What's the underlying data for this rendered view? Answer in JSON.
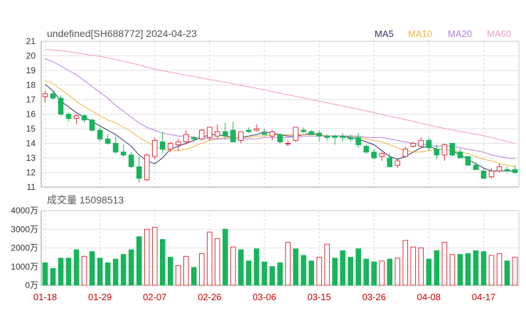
{
  "header": {
    "title": "undefined[SH688772] 2024-04-23"
  },
  "legend": [
    {
      "label": "MA5",
      "color": "#333366"
    },
    {
      "label": "MA10",
      "color": "#f0b43c"
    },
    {
      "label": "MA20",
      "color": "#b87ddc"
    },
    {
      "label": "MA60",
      "color": "#f09cc8"
    }
  ],
  "colors": {
    "up": "#e0303c",
    "down": "#18b45a"
  },
  "chart_data": [
    {
      "type": "candlestick",
      "name": "price",
      "ylim": [
        11,
        21
      ],
      "yticks": [
        "21",
        "20",
        "19",
        "18",
        "17",
        "16",
        "15",
        "14",
        "13",
        "12",
        "11"
      ],
      "xticks": [
        {
          "index": 0,
          "label": "01-18"
        },
        {
          "index": 7,
          "label": "01-29"
        },
        {
          "index": 14,
          "label": "02-07"
        },
        {
          "index": 21,
          "label": "02-26"
        },
        {
          "index": 28,
          "label": "03-06"
        },
        {
          "index": 35,
          "label": "03-15"
        },
        {
          "index": 42,
          "label": "03-26"
        },
        {
          "index": 49,
          "label": "04-08"
        },
        {
          "index": 56,
          "label": "04-17"
        }
      ],
      "ohlc": [
        [
          17.2,
          17.6,
          16.8,
          17.4
        ],
        [
          17.4,
          17.6,
          17.0,
          17.1
        ],
        [
          17.1,
          17.3,
          15.9,
          16.0
        ],
        [
          16.0,
          16.1,
          15.5,
          15.7
        ],
        [
          15.7,
          16.0,
          15.3,
          15.9
        ],
        [
          15.9,
          16.0,
          15.4,
          15.6
        ],
        [
          15.6,
          15.7,
          14.8,
          14.9
        ],
        [
          14.9,
          15.1,
          14.1,
          14.3
        ],
        [
          14.3,
          14.6,
          13.9,
          14.0
        ],
        [
          14.0,
          14.5,
          13.3,
          13.4
        ],
        [
          13.4,
          13.9,
          13.1,
          13.2
        ],
        [
          13.2,
          13.4,
          12.3,
          12.4
        ],
        [
          12.4,
          13.1,
          11.3,
          11.6
        ],
        [
          11.5,
          13.3,
          11.4,
          13.2
        ],
        [
          13.1,
          14.4,
          12.9,
          14.2
        ],
        [
          14.1,
          14.8,
          13.3,
          13.6
        ],
        [
          13.6,
          14.1,
          13.4,
          14.0
        ],
        [
          13.9,
          14.3,
          13.5,
          14.1
        ],
        [
          14.1,
          14.9,
          13.9,
          14.6
        ],
        [
          14.4,
          14.5,
          14.1,
          14.3
        ],
        [
          14.3,
          15.0,
          14.2,
          14.9
        ],
        [
          14.4,
          15.1,
          14.2,
          15.1
        ],
        [
          14.5,
          15.3,
          14.3,
          14.8
        ],
        [
          14.8,
          15.4,
          14.3,
          14.5
        ],
        [
          14.9,
          15.5,
          14.1,
          14.1
        ],
        [
          14.2,
          14.8,
          14.0,
          14.8
        ],
        [
          14.9,
          15.1,
          14.7,
          14.8
        ],
        [
          14.9,
          15.3,
          14.8,
          15.0
        ],
        [
          14.7,
          15.0,
          14.6,
          14.6
        ],
        [
          14.5,
          14.9,
          14.2,
          14.8
        ],
        [
          14.6,
          14.7,
          14.0,
          14.1
        ],
        [
          14.0,
          14.2,
          13.8,
          14.0
        ],
        [
          14.2,
          15.1,
          14.1,
          15.1
        ],
        [
          14.9,
          15.1,
          14.7,
          14.8
        ],
        [
          14.8,
          14.9,
          14.6,
          14.6
        ],
        [
          14.7,
          14.9,
          14.1,
          14.5
        ],
        [
          14.5,
          14.6,
          14.2,
          14.4
        ],
        [
          14.5,
          14.6,
          13.9,
          14.4
        ],
        [
          14.5,
          14.7,
          14.1,
          14.4
        ],
        [
          14.4,
          14.6,
          14.1,
          14.3
        ],
        [
          14.4,
          14.7,
          13.7,
          13.9
        ],
        [
          13.8,
          13.9,
          13.3,
          13.4
        ],
        [
          13.4,
          13.6,
          12.9,
          13.0
        ],
        [
          13.1,
          13.4,
          12.8,
          13.3
        ],
        [
          13.0,
          13.3,
          12.4,
          12.4
        ],
        [
          12.5,
          13.0,
          12.3,
          12.8
        ],
        [
          13.1,
          13.8,
          13.0,
          13.6
        ],
        [
          13.8,
          14.1,
          13.7,
          14.0
        ],
        [
          13.8,
          14.4,
          13.7,
          14.2
        ],
        [
          14.2,
          14.4,
          13.5,
          13.7
        ],
        [
          13.6,
          13.9,
          12.9,
          13.2
        ],
        [
          13.2,
          14.0,
          12.8,
          13.9
        ],
        [
          14.0,
          14.0,
          13.1,
          13.2
        ],
        [
          13.4,
          13.6,
          13.0,
          13.0
        ],
        [
          13.1,
          13.1,
          12.5,
          12.5
        ],
        [
          12.5,
          12.7,
          12.2,
          12.2
        ],
        [
          12.1,
          12.3,
          11.6,
          11.6
        ],
        [
          11.7,
          12.3,
          11.6,
          12.1
        ],
        [
          12.1,
          12.6,
          12.0,
          12.4
        ],
        [
          12.2,
          12.4,
          12.0,
          12.1
        ],
        [
          12.2,
          12.5,
          11.9,
          12.0
        ]
      ],
      "ma_curves": {
        "MA5": [
          18.05,
          17.6,
          16.9,
          16.5,
          16.1,
          15.8,
          15.5,
          15.2,
          14.9,
          14.6,
          14.2,
          13.8,
          13.2,
          12.8,
          12.6,
          13.0,
          13.6,
          13.8,
          14.0,
          14.2,
          14.4,
          14.6,
          14.6,
          14.5,
          14.4,
          14.4,
          14.5,
          14.6,
          14.8,
          14.7,
          14.6,
          14.5,
          14.5,
          14.6,
          14.7,
          14.6,
          14.5,
          14.5,
          14.5,
          14.4,
          14.3,
          14.1,
          13.9,
          13.5,
          13.1,
          12.9,
          13.1,
          13.4,
          13.7,
          13.8,
          13.6,
          13.6,
          13.5,
          13.2,
          12.9,
          12.6,
          12.3,
          12.1,
          12.1,
          12.1,
          12.1
        ],
        "MA10": [
          18.3,
          18.1,
          17.7,
          17.3,
          16.9,
          16.5,
          16.2,
          15.9,
          15.6,
          15.4,
          15.1,
          14.8,
          14.4,
          14.1,
          13.8,
          13.6,
          13.5,
          13.5,
          13.6,
          13.8,
          14.0,
          14.2,
          14.3,
          14.4,
          14.4,
          14.4,
          14.4,
          14.5,
          14.5,
          14.6,
          14.6,
          14.6,
          14.6,
          14.6,
          14.6,
          14.6,
          14.5,
          14.5,
          14.5,
          14.5,
          14.4,
          14.3,
          14.2,
          14.1,
          13.9,
          13.7,
          13.5,
          13.4,
          13.4,
          13.5,
          13.6,
          13.6,
          13.5,
          13.4,
          13.3,
          13.1,
          12.9,
          12.8,
          12.6,
          12.5,
          12.4
        ],
        "MA20": [
          19.8,
          19.6,
          19.3,
          19.0,
          18.7,
          18.3,
          17.9,
          17.5,
          17.1,
          16.6,
          16.2,
          15.8,
          15.4,
          15.1,
          14.9,
          14.7,
          14.6,
          14.5,
          14.5,
          14.4,
          14.4,
          14.3,
          14.3,
          14.3,
          14.3,
          14.3,
          14.3,
          14.3,
          14.4,
          14.4,
          14.4,
          14.4,
          14.4,
          14.5,
          14.5,
          14.5,
          14.5,
          14.5,
          14.5,
          14.5,
          14.5,
          14.4,
          14.4,
          14.4,
          14.3,
          14.2,
          14.1,
          14.0,
          13.9,
          13.9,
          13.8,
          13.8,
          13.8,
          13.7,
          13.6,
          13.5,
          13.4,
          13.2,
          13.1,
          13.0,
          12.95
        ],
        "MA60": [
          20.45,
          20.4,
          20.35,
          20.28,
          20.2,
          20.12,
          20.04,
          19.96,
          19.86,
          19.74,
          19.62,
          19.5,
          19.38,
          19.22,
          19.08,
          18.98,
          18.88,
          18.78,
          18.68,
          18.58,
          18.48,
          18.38,
          18.28,
          18.18,
          18.08,
          17.98,
          17.88,
          17.77,
          17.66,
          17.55,
          17.44,
          17.33,
          17.22,
          17.11,
          17.0,
          16.89,
          16.78,
          16.67,
          16.56,
          16.45,
          16.34,
          16.22,
          16.1,
          15.98,
          15.86,
          15.74,
          15.62,
          15.5,
          15.38,
          15.26,
          15.14,
          15.02,
          14.92,
          14.82,
          14.72,
          14.62,
          14.52,
          14.4,
          14.26,
          14.12,
          13.98
        ]
      }
    },
    {
      "type": "bar",
      "name": "volume",
      "title": "成交量 15098513",
      "ylim": [
        0,
        4000
      ],
      "yticks": [
        "4000万",
        "3000万",
        "2000万",
        "1000万",
        "0万"
      ],
      "values": [
        1200,
        900,
        1450,
        1450,
        1900,
        1550,
        1800,
        1450,
        1200,
        1400,
        1650,
        1900,
        2600,
        3000,
        3100,
        2450,
        1500,
        1050,
        1550,
        950,
        1700,
        2850,
        2500,
        3000,
        2050,
        1900,
        1300,
        1950,
        1250,
        1000,
        1200,
        2300,
        1950,
        1600,
        1300,
        1500,
        2200,
        1450,
        1850,
        1500,
        1950,
        1400,
        1250,
        1300,
        1400,
        1450,
        2400,
        2050,
        2000,
        1400,
        1850,
        2300,
        1650,
        1650,
        1700,
        1850,
        1800,
        1600,
        1700,
        1300,
        1500
      ],
      "up": [
        false,
        false,
        false,
        false,
        false,
        true,
        false,
        false,
        false,
        false,
        false,
        false,
        false,
        true,
        true,
        false,
        false,
        true,
        true,
        false,
        true,
        true,
        true,
        false,
        true,
        false,
        false,
        false,
        false,
        false,
        false,
        true,
        false,
        false,
        false,
        true,
        true,
        false,
        false,
        false,
        false,
        false,
        false,
        true,
        false,
        true,
        true,
        true,
        true,
        false,
        false,
        true,
        true,
        false,
        false,
        false,
        false,
        true,
        true,
        false,
        true
      ]
    }
  ]
}
